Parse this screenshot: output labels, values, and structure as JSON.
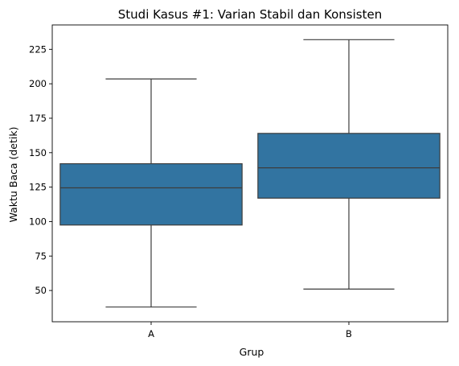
{
  "chart_data": {
    "type": "box",
    "title": "Studi Kasus #1: Varian Stabil dan Konsisten",
    "xlabel": "Grup",
    "ylabel": "Waktu Baca (detik)",
    "categories": [
      "A",
      "B"
    ],
    "boxes": [
      {
        "category": "A",
        "whislo": 38,
        "q1": 97.5,
        "med": 124.5,
        "q3": 142,
        "whishi": 203.5
      },
      {
        "category": "B",
        "whislo": 51,
        "q1": 117,
        "med": 139,
        "q3": 164,
        "whishi": 232
      }
    ],
    "yticks": [
      50,
      75,
      100,
      125,
      150,
      175,
      200,
      225
    ],
    "ylim": [
      27.3,
      242.7
    ],
    "box_color": "#3274a1",
    "line_color": "#3d3d3d",
    "grid": false
  }
}
